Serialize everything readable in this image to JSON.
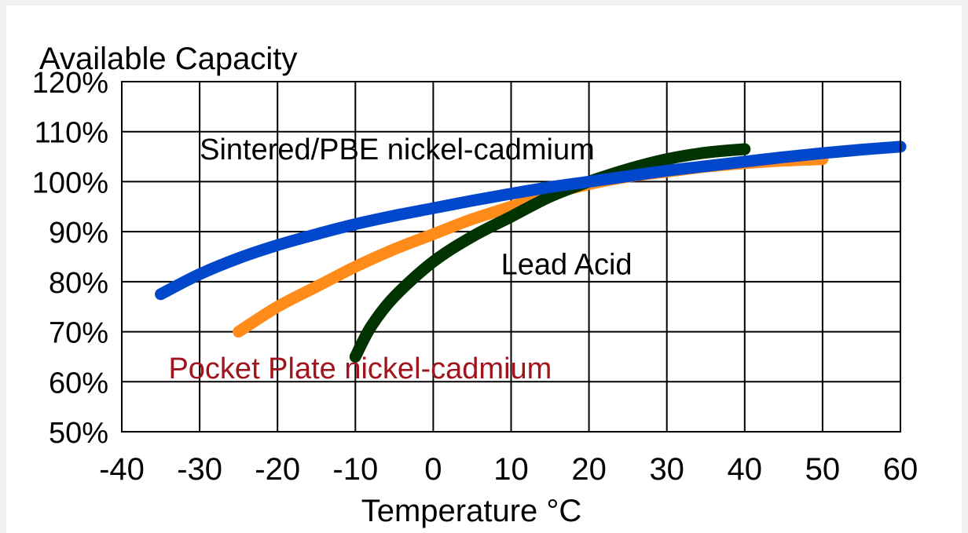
{
  "chart_data": {
    "type": "line",
    "title": "Available Capacity",
    "xlabel": "Temperature °C",
    "ylabel": "",
    "xlim": [
      -40,
      60
    ],
    "ylim": [
      50,
      120
    ],
    "x_ticks": [
      -40,
      -30,
      -20,
      -10,
      0,
      10,
      20,
      30,
      40,
      50,
      60
    ],
    "x_tick_labels": [
      "-40",
      "-30",
      "-20",
      "-10",
      "0",
      "10",
      "20",
      "30",
      "40",
      "50",
      "60"
    ],
    "y_ticks": [
      50,
      60,
      70,
      80,
      90,
      100,
      110,
      120
    ],
    "y_tick_labels": [
      "50%",
      "60%",
      "70%",
      "80%",
      "90%",
      "100%",
      "110%",
      "120%"
    ],
    "grid": true,
    "series": [
      {
        "name": "Pocket Plate nickel-cadmium",
        "color": "#ff8c1a",
        "x": [
          -25,
          -20,
          -15,
          -10,
          -5,
          0,
          5,
          10,
          15,
          20,
          25,
          30,
          35,
          40,
          45,
          50
        ],
        "y": [
          70,
          75,
          79,
          83,
          86.5,
          89.5,
          92.5,
          95,
          97.5,
          99.5,
          101,
          102,
          103,
          103.7,
          104.2,
          104.5
        ]
      },
      {
        "name": "Lead Acid",
        "color": "#003300",
        "x": [
          -10,
          -8,
          -5,
          0,
          5,
          10,
          15,
          20,
          25,
          30,
          35,
          40
        ],
        "y": [
          65,
          71,
          77,
          84,
          89,
          93,
          97,
          100,
          102.5,
          104.5,
          105.8,
          106.5
        ]
      },
      {
        "name": "Sintered/PBE  nickel-cadmium",
        "color": "#0047cc",
        "x": [
          -35,
          -30,
          -25,
          -20,
          -15,
          -10,
          -5,
          0,
          5,
          10,
          15,
          20,
          25,
          30,
          35,
          40,
          45,
          50,
          55,
          60
        ],
        "y": [
          77.5,
          81.5,
          84.7,
          87.3,
          89.5,
          91.5,
          93.2,
          94.7,
          96.2,
          97.6,
          98.9,
          100,
          101.1,
          102.2,
          103.1,
          104,
          104.9,
          105.7,
          106.4,
          107
        ]
      }
    ],
    "annotations": [
      {
        "text": "Sintered/PBE  nickel-cadmium",
        "x": -30,
        "y": 104.5,
        "color": "#000000"
      },
      {
        "text": "Lead Acid",
        "x": 8.7,
        "y": 81.5,
        "color": "#000000"
      },
      {
        "text": "Pocket Plate nickel-cadmium",
        "x": -34,
        "y": 60.7,
        "color": "#a0141e"
      }
    ]
  }
}
